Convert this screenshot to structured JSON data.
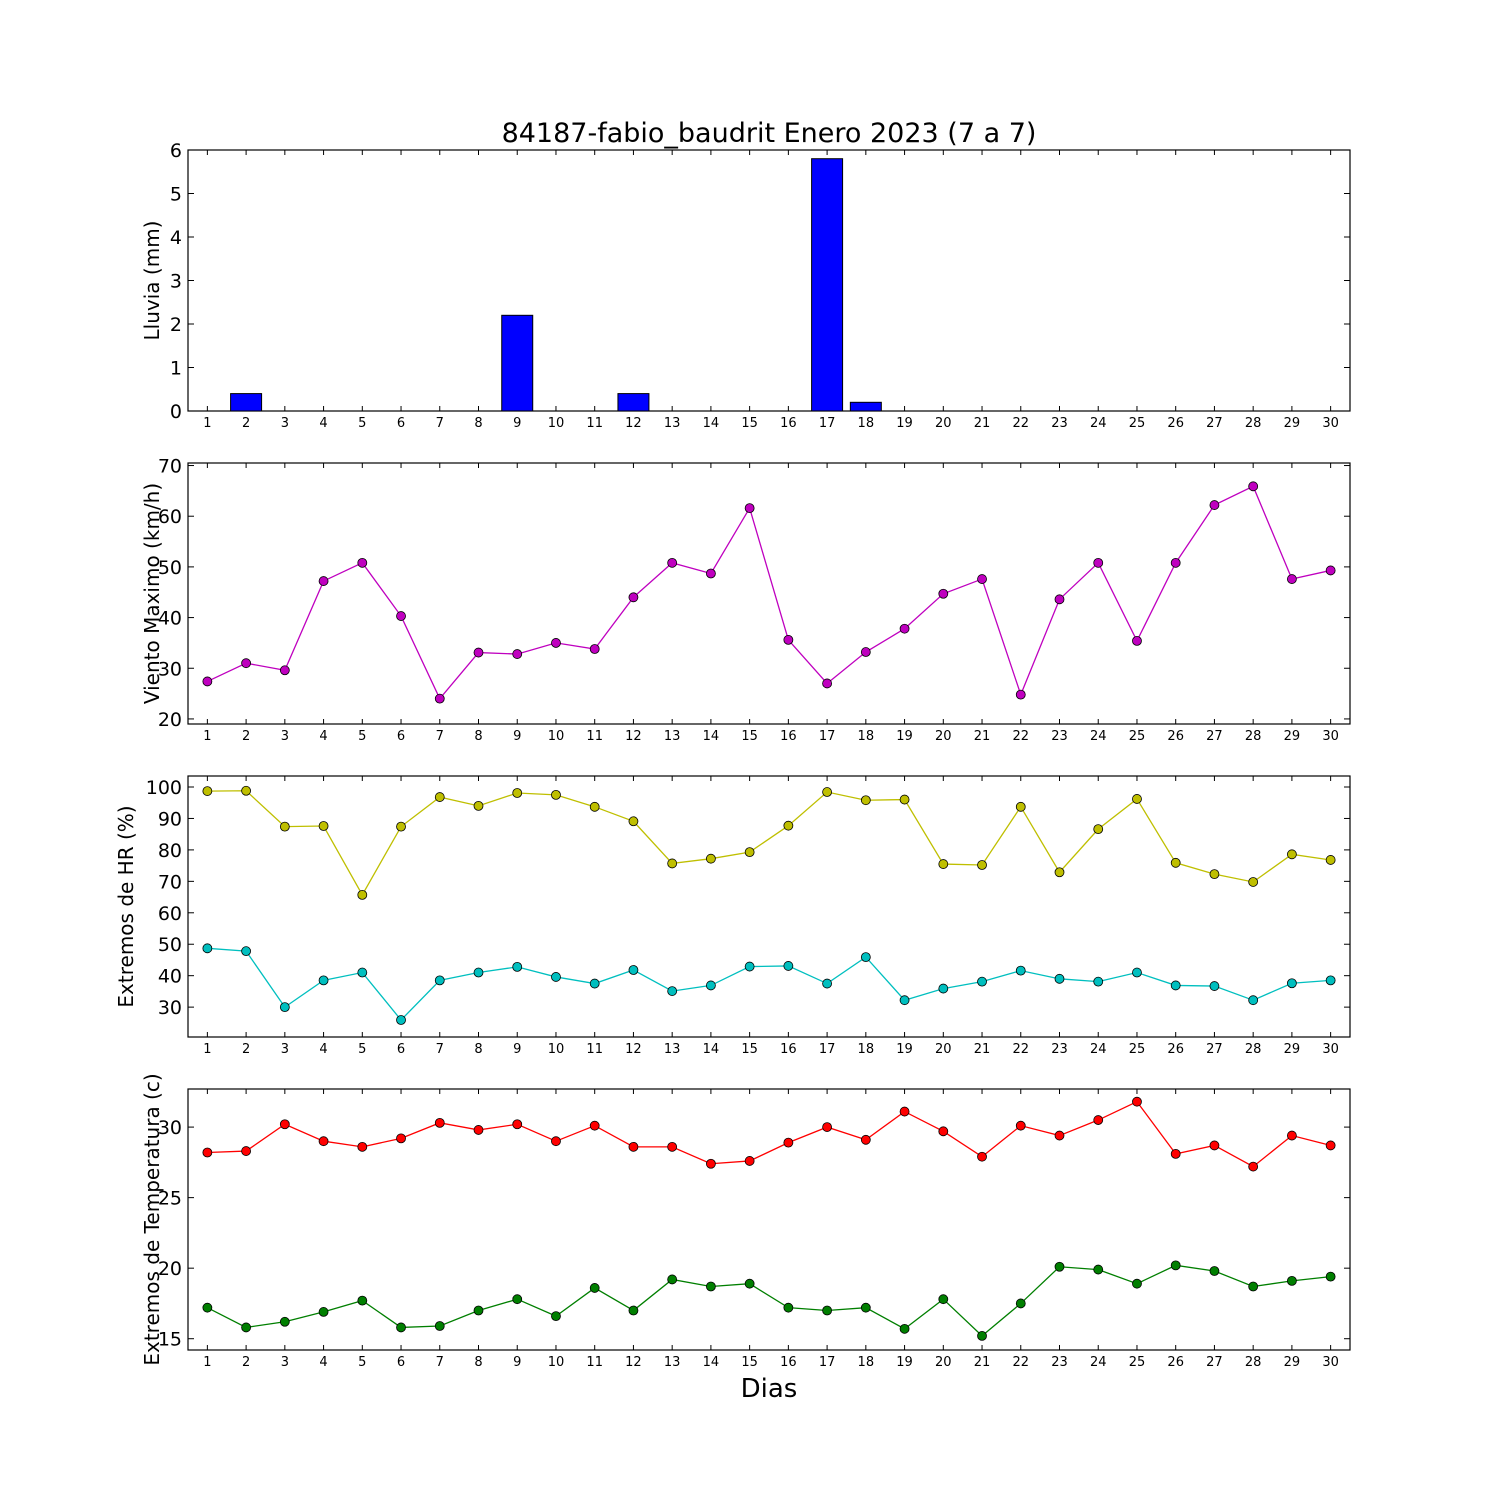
{
  "figure": {
    "title": "84187-fabio_baudrit Enero 2023  (7 a 7)",
    "xlabel": "Dias"
  },
  "chart_data": [
    {
      "type": "bar",
      "ylabel": "Lluvia (mm)",
      "ylim": [
        0,
        6
      ],
      "yticks": [
        0,
        1,
        2,
        3,
        4,
        5,
        6
      ],
      "categories": [
        1,
        2,
        3,
        4,
        5,
        6,
        7,
        8,
        9,
        10,
        11,
        12,
        13,
        14,
        15,
        16,
        17,
        18,
        19,
        20,
        21,
        22,
        23,
        24,
        25,
        26,
        27,
        28,
        29,
        30
      ],
      "color": "#0000ff",
      "values": [
        0,
        0.4,
        0,
        0,
        0,
        0,
        0,
        0,
        2.2,
        0,
        0,
        0.4,
        0,
        0,
        0,
        0,
        5.8,
        0.2,
        0,
        0,
        0,
        0,
        0,
        0,
        0,
        0,
        0,
        0,
        0,
        0
      ]
    },
    {
      "type": "line",
      "ylabel": "Viento Maximo (km/h)",
      "ylim": [
        19,
        70.5
      ],
      "yticks": [
        20,
        30,
        40,
        50,
        60,
        70
      ],
      "x": [
        1,
        2,
        3,
        4,
        5,
        6,
        7,
        8,
        9,
        10,
        11,
        12,
        13,
        14,
        15,
        16,
        17,
        18,
        19,
        20,
        21,
        22,
        23,
        24,
        25,
        26,
        27,
        28,
        29,
        30
      ],
      "series": [
        {
          "color": "#bf00bf",
          "values": [
            27.4,
            31,
            29.6,
            47.2,
            50.8,
            40.3,
            24,
            33.1,
            32.8,
            35,
            33.8,
            44,
            50.8,
            48.7,
            61.6,
            35.6,
            27,
            33.2,
            37.8,
            44.7,
            47.6,
            24.8,
            43.6,
            50.8,
            35.4,
            50.8,
            62.2,
            65.9,
            47.6,
            49.3
          ]
        }
      ]
    },
    {
      "type": "line",
      "ylabel": "Extremos de HR (%)",
      "ylim": [
        20.5,
        103.5
      ],
      "yticks": [
        30,
        40,
        50,
        60,
        70,
        80,
        90,
        100
      ],
      "x": [
        1,
        2,
        3,
        4,
        5,
        6,
        7,
        8,
        9,
        10,
        11,
        12,
        13,
        14,
        15,
        16,
        17,
        18,
        19,
        20,
        21,
        22,
        23,
        24,
        25,
        26,
        27,
        28,
        29,
        30
      ],
      "series": [
        {
          "color": "#bfbf00",
          "values": [
            98.7,
            98.8,
            87.4,
            87.6,
            65.7,
            87.4,
            96.8,
            94,
            98.1,
            97.5,
            93.7,
            89.1,
            75.7,
            77.2,
            79.3,
            87.7,
            98.4,
            95.8,
            96,
            75.5,
            75.2,
            93.7,
            72.9,
            86.6,
            96.2,
            75.9,
            72.3,
            69.8,
            78.6,
            76.8
          ]
        },
        {
          "color": "#00bfbf",
          "values": [
            48.7,
            47.8,
            30,
            38.5,
            41,
            25.9,
            38.5,
            41,
            42.8,
            39.6,
            37.5,
            41.8,
            35.1,
            36.9,
            42.9,
            43.1,
            37.5,
            45.9,
            32.2,
            35.9,
            38.1,
            41.6,
            39,
            38.1,
            41,
            36.9,
            36.7,
            32.2,
            37.6,
            38.5
          ]
        }
      ]
    },
    {
      "type": "line",
      "ylabel": "Extremos de Temperatura (c)",
      "ylim": [
        14.2,
        32.7
      ],
      "yticks": [
        15,
        20,
        25,
        30
      ],
      "x": [
        1,
        2,
        3,
        4,
        5,
        6,
        7,
        8,
        9,
        10,
        11,
        12,
        13,
        14,
        15,
        16,
        17,
        18,
        19,
        20,
        21,
        22,
        23,
        24,
        25,
        26,
        27,
        28,
        29,
        30
      ],
      "series": [
        {
          "color": "#ff0000",
          "values": [
            28.2,
            28.3,
            30.2,
            29,
            28.6,
            29.2,
            30.3,
            29.8,
            30.2,
            29,
            30.1,
            28.6,
            28.6,
            27.4,
            27.6,
            28.9,
            30,
            29.1,
            31.1,
            29.7,
            27.9,
            30.1,
            29.4,
            30.5,
            31.8,
            28.1,
            28.7,
            27.2,
            29.4,
            28.7
          ]
        },
        {
          "color": "#007f00",
          "values": [
            17.2,
            15.8,
            16.2,
            16.9,
            17.7,
            15.8,
            15.9,
            17,
            17.8,
            16.6,
            18.6,
            17,
            19.2,
            18.7,
            18.9,
            17.2,
            17,
            17.2,
            15.7,
            17.8,
            15.2,
            17.5,
            20.1,
            19.9,
            18.9,
            20.2,
            19.8,
            18.7,
            19.1,
            19.4
          ]
        }
      ]
    }
  ]
}
